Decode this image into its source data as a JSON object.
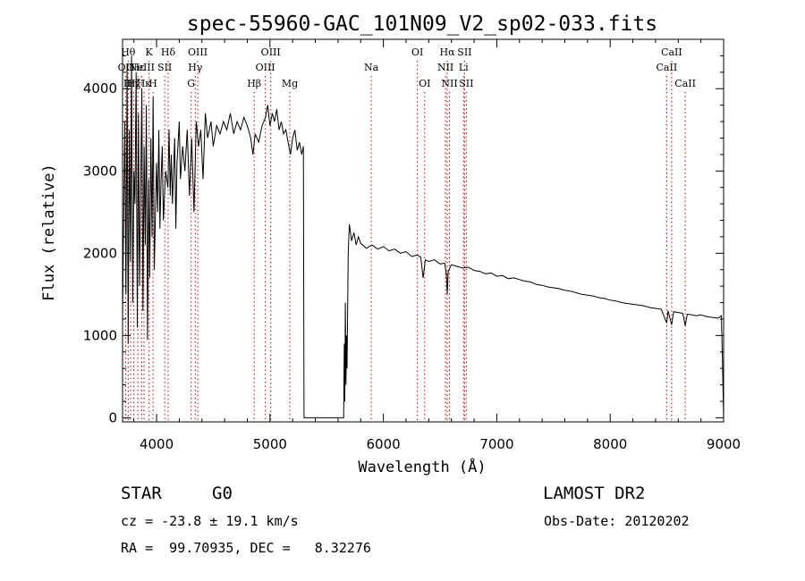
{
  "chart_data": {
    "type": "line",
    "title": "spec-55960-GAC_101N09_V2_sp02-033.fits",
    "xlabel": "Wavelength (Å)",
    "ylabel": "Flux (relative)",
    "xlim": [
      3700,
      9000
    ],
    "ylim": [
      -50,
      4600
    ],
    "x_ticks": [
      4000,
      5000,
      6000,
      7000,
      8000,
      9000
    ],
    "y_ticks": [
      0,
      1000,
      2000,
      3000,
      4000
    ],
    "grid": false,
    "series": [
      {
        "color": "#000000",
        "points": [
          [
            3700,
            1200
          ],
          [
            3720,
            3600
          ],
          [
            3730,
            1500
          ],
          [
            3740,
            4300
          ],
          [
            3750,
            900
          ],
          [
            3760,
            3500
          ],
          [
            3770,
            1900
          ],
          [
            3780,
            4400
          ],
          [
            3790,
            1400
          ],
          [
            3800,
            3000
          ],
          [
            3810,
            2600
          ],
          [
            3820,
            4200
          ],
          [
            3830,
            1100
          ],
          [
            3840,
            3700
          ],
          [
            3850,
            1600
          ],
          [
            3860,
            2800
          ],
          [
            3870,
            4000
          ],
          [
            3880,
            1300
          ],
          [
            3890,
            3300
          ],
          [
            3900,
            2100
          ],
          [
            3910,
            3800
          ],
          [
            3920,
            950
          ],
          [
            3930,
            2900
          ],
          [
            3940,
            1700
          ],
          [
            3950,
            3400
          ],
          [
            3960,
            2200
          ],
          [
            3970,
            3900
          ],
          [
            3980,
            1800
          ],
          [
            4000,
            3100
          ],
          [
            4010,
            2500
          ],
          [
            4020,
            3500
          ],
          [
            4030,
            2300
          ],
          [
            4040,
            2900
          ],
          [
            4050,
            3300
          ],
          [
            4060,
            2400
          ],
          [
            4080,
            3000
          ],
          [
            4100,
            2800
          ],
          [
            4110,
            3500
          ],
          [
            4120,
            2700
          ],
          [
            4130,
            3200
          ],
          [
            4140,
            2600
          ],
          [
            4160,
            3400
          ],
          [
            4170,
            2300
          ],
          [
            4180,
            3100
          ],
          [
            4200,
            3600
          ],
          [
            4210,
            2900
          ],
          [
            4230,
            3300
          ],
          [
            4250,
            3000
          ],
          [
            4270,
            3500
          ],
          [
            4290,
            2700
          ],
          [
            4310,
            3400
          ],
          [
            4330,
            2500
          ],
          [
            4350,
            3600
          ],
          [
            4370,
            3300
          ],
          [
            4390,
            3500
          ],
          [
            4410,
            2900
          ],
          [
            4430,
            3700
          ],
          [
            4450,
            3400
          ],
          [
            4480,
            3600
          ],
          [
            4500,
            3300
          ],
          [
            4530,
            3550
          ],
          [
            4560,
            3450
          ],
          [
            4590,
            3600
          ],
          [
            4620,
            3500
          ],
          [
            4650,
            3700
          ],
          [
            4680,
            3450
          ],
          [
            4710,
            3600
          ],
          [
            4740,
            3500
          ],
          [
            4770,
            3650
          ],
          [
            4800,
            3550
          ],
          [
            4830,
            3400
          ],
          [
            4850,
            3200
          ],
          [
            4870,
            3450
          ],
          [
            4900,
            3350
          ],
          [
            4930,
            3550
          ],
          [
            4960,
            3650
          ],
          [
            4980,
            3800
          ],
          [
            5000,
            3550
          ],
          [
            5020,
            3700
          ],
          [
            5040,
            3600
          ],
          [
            5060,
            3750
          ],
          [
            5080,
            3500
          ],
          [
            5100,
            3600
          ],
          [
            5120,
            3450
          ],
          [
            5140,
            3500
          ],
          [
            5160,
            3350
          ],
          [
            5180,
            3200
          ],
          [
            5200,
            3400
          ],
          [
            5220,
            3500
          ],
          [
            5240,
            3250
          ],
          [
            5260,
            3350
          ],
          [
            5280,
            3200
          ],
          [
            5295,
            3300
          ],
          [
            5300,
            0
          ],
          [
            5650,
            0
          ],
          [
            5655,
            900
          ],
          [
            5660,
            200
          ],
          [
            5665,
            1400
          ],
          [
            5670,
            400
          ],
          [
            5675,
            1000
          ],
          [
            5680,
            600
          ],
          [
            5690,
            2000
          ],
          [
            5700,
            2350
          ],
          [
            5720,
            2150
          ],
          [
            5740,
            2250
          ],
          [
            5760,
            2100
          ],
          [
            5780,
            2200
          ],
          [
            5800,
            2120
          ],
          [
            5850,
            2060
          ],
          [
            5900,
            2100
          ],
          [
            5950,
            2050
          ],
          [
            6000,
            2080
          ],
          [
            6050,
            2030
          ],
          [
            6100,
            2050
          ],
          [
            6150,
            2000
          ],
          [
            6200,
            2020
          ],
          [
            6250,
            1960
          ],
          [
            6300,
            1980
          ],
          [
            6330,
            1950
          ],
          [
            6350,
            1700
          ],
          [
            6370,
            1920
          ],
          [
            6400,
            1900
          ],
          [
            6450,
            1920
          ],
          [
            6500,
            1870
          ],
          [
            6540,
            1880
          ],
          [
            6555,
            1750
          ],
          [
            6563,
            1500
          ],
          [
            6572,
            1780
          ],
          [
            6600,
            1860
          ],
          [
            6650,
            1840
          ],
          [
            6700,
            1820
          ],
          [
            6750,
            1830
          ],
          [
            6800,
            1790
          ],
          [
            6850,
            1780
          ],
          [
            6900,
            1750
          ],
          [
            6950,
            1760
          ],
          [
            7000,
            1720
          ],
          [
            7050,
            1730
          ],
          [
            7100,
            1690
          ],
          [
            7150,
            1700
          ],
          [
            7200,
            1680
          ],
          [
            7250,
            1660
          ],
          [
            7300,
            1650
          ],
          [
            7350,
            1620
          ],
          [
            7400,
            1610
          ],
          [
            7450,
            1590
          ],
          [
            7500,
            1580
          ],
          [
            7550,
            1570
          ],
          [
            7600,
            1550
          ],
          [
            7650,
            1540
          ],
          [
            7700,
            1520
          ],
          [
            7750,
            1500
          ],
          [
            7800,
            1490
          ],
          [
            7850,
            1480
          ],
          [
            7900,
            1460
          ],
          [
            7950,
            1450
          ],
          [
            8000,
            1430
          ],
          [
            8050,
            1420
          ],
          [
            8100,
            1400
          ],
          [
            8150,
            1390
          ],
          [
            8200,
            1380
          ],
          [
            8250,
            1370
          ],
          [
            8300,
            1360
          ],
          [
            8350,
            1340
          ],
          [
            8400,
            1330
          ],
          [
            8450,
            1320
          ],
          [
            8498,
            1150
          ],
          [
            8510,
            1300
          ],
          [
            8542,
            1130
          ],
          [
            8560,
            1290
          ],
          [
            8600,
            1280
          ],
          [
            8640,
            1270
          ],
          [
            8662,
            1120
          ],
          [
            8680,
            1260
          ],
          [
            8720,
            1250
          ],
          [
            8760,
            1240
          ],
          [
            8800,
            1250
          ],
          [
            8850,
            1230
          ],
          [
            8900,
            1220
          ],
          [
            8950,
            1210
          ],
          [
            8980,
            1240
          ],
          [
            8990,
            700
          ],
          [
            9000,
            0
          ]
        ]
      }
    ],
    "line_markers": {
      "color": "#cc0000",
      "lines": [
        {
          "wl": 3727,
          "text": "OII",
          "row": 2
        },
        {
          "wl": 3750,
          "text": "Hθ",
          "row": 1
        },
        {
          "wl": 3771,
          "text": "Hη",
          "row": 3
        },
        {
          "wl": 3798,
          "text": "Hζ",
          "row": 3
        },
        {
          "wl": 3835,
          "text": "Hε",
          "row": 2
        },
        {
          "wl": 3869,
          "text": "NeIII",
          "row": 2
        },
        {
          "wl": 3889,
          "text": "Hκ",
          "row": 3
        },
        {
          "wl": 3934,
          "text": "K",
          "row": 1
        },
        {
          "wl": 3969,
          "text": "H",
          "row": 3
        },
        {
          "wl": 4072,
          "text": "SII",
          "row": 2
        },
        {
          "wl": 4102,
          "text": "Hδ",
          "row": 1
        },
        {
          "wl": 4305,
          "text": "G",
          "row": 3
        },
        {
          "wl": 4341,
          "text": "Hγ",
          "row": 2
        },
        {
          "wl": 4363,
          "text": "OIII",
          "row": 1
        },
        {
          "wl": 4861,
          "text": "Hβ",
          "row": 3
        },
        {
          "wl": 4959,
          "text": "OIII",
          "row": 2
        },
        {
          "wl": 5007,
          "text": "OIII",
          "row": 1
        },
        {
          "wl": 5175,
          "text": "Mg",
          "row": 3
        },
        {
          "wl": 5893,
          "text": "Na",
          "row": 2
        },
        {
          "wl": 6300,
          "text": "OI",
          "row": 1
        },
        {
          "wl": 6364,
          "text": "OI",
          "row": 3
        },
        {
          "wl": 6548,
          "text": "NII",
          "row": 2
        },
        {
          "wl": 6563,
          "text": "Hα",
          "row": 1
        },
        {
          "wl": 6583,
          "text": "NII",
          "row": 3
        },
        {
          "wl": 6707,
          "text": "Li",
          "row": 2
        },
        {
          "wl": 6716,
          "text": "SII",
          "row": 1
        },
        {
          "wl": 6731,
          "text": "SII",
          "row": 3
        },
        {
          "wl": 8498,
          "text": "CaII",
          "row": 2
        },
        {
          "wl": 8542,
          "text": "CaII",
          "row": 1
        },
        {
          "wl": 8662,
          "text": "CaII",
          "row": 3
        }
      ]
    }
  },
  "info": {
    "class": "STAR",
    "subclass": "G0",
    "survey": "LAMOST DR2",
    "cz": "cz = -23.8 ± 19.1 km/s",
    "obs_date": "Obs-Date: 20120202",
    "coords": "RA =  99.70935, DEC =   8.32276"
  }
}
